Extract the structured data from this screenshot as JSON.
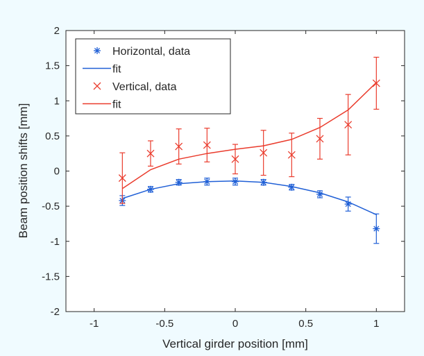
{
  "chart_data": {
    "type": "scatter",
    "xlabel": "Vertical girder position [mm]",
    "ylabel": "Beam position shifts [mm]",
    "xlim": [
      -1.2,
      1.2
    ],
    "ylim": [
      -2,
      2
    ],
    "xticks": [
      -1,
      -0.5,
      0,
      0.5,
      1
    ],
    "yticks": [
      -2,
      -1.5,
      -1,
      -0.5,
      0,
      0.5,
      1,
      1.5,
      2
    ],
    "xtick_labels": [
      "-1",
      "-0.5",
      "0",
      "0.5",
      "1"
    ],
    "ytick_labels": [
      "-2",
      "-1.5",
      "-1",
      "-0.5",
      "0",
      "0.5",
      "1",
      "1.5",
      "2"
    ],
    "legend_position": "top-left",
    "grid": false,
    "series": [
      {
        "name": "Horizontal, data",
        "kind": "data",
        "marker": "asterisk",
        "color": "#1f5fd6",
        "x": [
          -0.8,
          -0.6,
          -0.4,
          -0.2,
          0,
          0.2,
          0.4,
          0.6,
          0.8,
          1.0
        ],
        "y": [
          -0.42,
          -0.26,
          -0.16,
          -0.15,
          -0.15,
          -0.16,
          -0.23,
          -0.33,
          -0.47,
          -0.82
        ],
        "err": [
          0.07,
          0.04,
          0.04,
          0.05,
          0.05,
          0.04,
          0.04,
          0.05,
          0.1,
          0.21
        ]
      },
      {
        "name": "fit",
        "kind": "fit",
        "color": "#1f5fd6",
        "x": [
          -0.8,
          -0.6,
          -0.4,
          -0.2,
          0,
          0.2,
          0.4,
          0.6,
          0.8,
          1.0
        ],
        "y": [
          -0.39,
          -0.26,
          -0.18,
          -0.15,
          -0.14,
          -0.16,
          -0.22,
          -0.31,
          -0.44,
          -0.62
        ]
      },
      {
        "name": "Vertical, data",
        "kind": "data",
        "marker": "x",
        "color": "#ea3b2c",
        "x": [
          -0.8,
          -0.6,
          -0.4,
          -0.2,
          0,
          0.2,
          0.4,
          0.6,
          0.8,
          1.0
        ],
        "y": [
          -0.1,
          0.25,
          0.35,
          0.37,
          0.17,
          0.26,
          0.23,
          0.46,
          0.66,
          1.25
        ],
        "err": [
          0.36,
          0.18,
          0.25,
          0.24,
          0.21,
          0.32,
          0.31,
          0.29,
          0.43,
          0.37
        ]
      },
      {
        "name": "fit",
        "kind": "fit",
        "color": "#ea3b2c",
        "x": [
          -0.8,
          -0.6,
          -0.4,
          -0.2,
          0,
          0.2,
          0.4,
          0.6,
          0.8,
          1.0
        ],
        "y": [
          -0.25,
          0.02,
          0.17,
          0.25,
          0.31,
          0.36,
          0.45,
          0.62,
          0.87,
          1.26
        ]
      }
    ]
  }
}
